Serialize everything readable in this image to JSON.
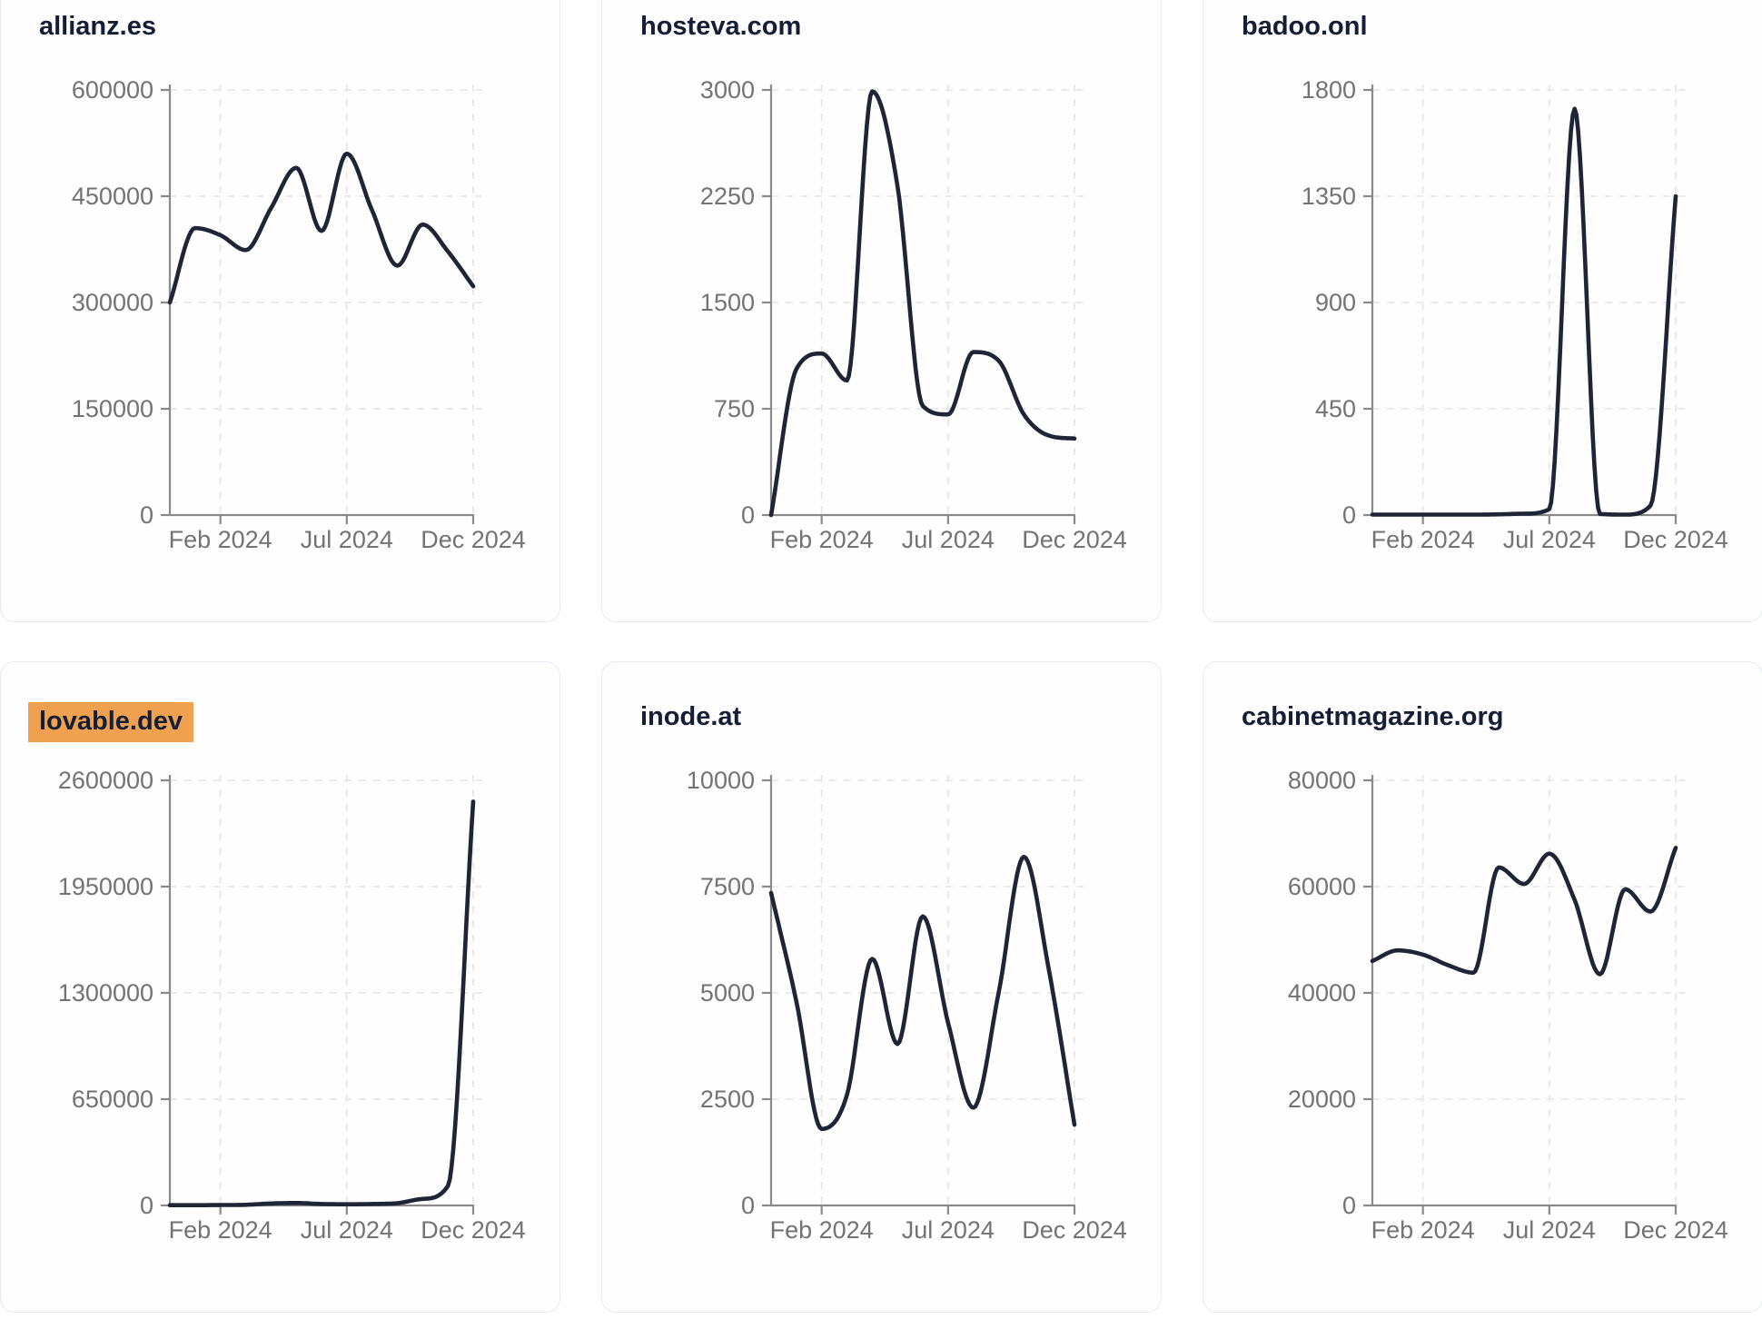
{
  "page": {
    "description": "Dashboard grid of six website traffic line charts, one card per domain",
    "rows": 2,
    "columns": 3
  },
  "style": {
    "line_color": "#1e2537",
    "title_color": "#141e36",
    "highlight_color": "#f0a150",
    "tick_label_color": "#737373",
    "axis_color": "#8a8a8a",
    "grid_color": "#e8e8e8",
    "card_border_color": "#e8eaf2",
    "card_bg": "#fefefe",
    "page_bg": "#ffffff"
  },
  "chart_data": [
    {
      "type": "line",
      "title": "allianz.es",
      "highlighted": false,
      "grid": "dashed",
      "legend": "none",
      "xlabel": "",
      "ylabel": "",
      "ylim": [
        0,
        600000
      ],
      "y_ticks": [
        0,
        150000,
        300000,
        450000,
        600000
      ],
      "x_tick_labels": [
        {
          "label": "Feb 2024",
          "month_index": 2
        },
        {
          "label": "Jul 2024",
          "month_index": 7
        },
        {
          "label": "Dec 2024",
          "month_index": 12
        }
      ],
      "months": [
        "Dec 2023",
        "Jan 2024",
        "Feb 2024",
        "Mar 2024",
        "Apr 2024",
        "May 2024",
        "Jun 2024",
        "Jul 2024",
        "Aug 2024",
        "Sep 2024",
        "Oct 2024",
        "Nov 2024",
        "Dec 2024"
      ],
      "values": [
        300000,
        405000,
        395000,
        374000,
        433000,
        490000,
        401000,
        510000,
        430000,
        352000,
        410000,
        372000,
        323000
      ]
    },
    {
      "type": "line",
      "title": "hosteva.com",
      "highlighted": false,
      "grid": "dashed",
      "legend": "none",
      "xlabel": "",
      "ylabel": "",
      "ylim": [
        0,
        3000
      ],
      "y_ticks": [
        0,
        750,
        1500,
        2250,
        3000
      ],
      "x_tick_labels": [
        {
          "label": "Feb 2024",
          "month_index": 2
        },
        {
          "label": "Jul 2024",
          "month_index": 7
        },
        {
          "label": "Dec 2024",
          "month_index": 12
        }
      ],
      "months": [
        "Dec 2023",
        "Jan 2024",
        "Feb 2024",
        "Mar 2024",
        "Apr 2024",
        "May 2024",
        "Jun 2024",
        "Jul 2024",
        "Aug 2024",
        "Sep 2024",
        "Oct 2024",
        "Nov 2024",
        "Dec 2024"
      ],
      "values": [
        0,
        1030,
        1140,
        950,
        2990,
        2320,
        770,
        710,
        1150,
        1090,
        710,
        560,
        540
      ]
    },
    {
      "type": "line",
      "title": "badoo.onl",
      "highlighted": false,
      "grid": "dashed",
      "legend": "none",
      "xlabel": "",
      "ylabel": "",
      "ylim": [
        0,
        1800
      ],
      "y_ticks": [
        0,
        450,
        900,
        1350,
        1800
      ],
      "x_tick_labels": [
        {
          "label": "Feb 2024",
          "month_index": 2
        },
        {
          "label": "Jul 2024",
          "month_index": 7
        },
        {
          "label": "Dec 2024",
          "month_index": 12
        }
      ],
      "months": [
        "Dec 2023",
        "Jan 2024",
        "Feb 2024",
        "Mar 2024",
        "Apr 2024",
        "May 2024",
        "Jun 2024",
        "Jul 2024",
        "Aug 2024",
        "Sep 2024",
        "Oct 2024",
        "Nov 2024",
        "Dec 2024"
      ],
      "values": [
        2,
        2,
        2,
        2,
        2,
        3,
        6,
        25,
        1720,
        5,
        2,
        40,
        1350
      ]
    },
    {
      "type": "line",
      "title": "lovable.dev",
      "highlighted": true,
      "grid": "dashed",
      "legend": "none",
      "xlabel": "",
      "ylabel": "",
      "ylim": [
        0,
        2600000
      ],
      "y_ticks": [
        0,
        650000,
        1300000,
        1950000,
        2600000
      ],
      "x_tick_labels": [
        {
          "label": "Feb 2024",
          "month_index": 2
        },
        {
          "label": "Jul 2024",
          "month_index": 7
        },
        {
          "label": "Dec 2024",
          "month_index": 12
        }
      ],
      "months": [
        "Dec 2023",
        "Jan 2024",
        "Feb 2024",
        "Mar 2024",
        "Apr 2024",
        "May 2024",
        "Jun 2024",
        "Jul 2024",
        "Aug 2024",
        "Sep 2024",
        "Oct 2024",
        "Nov 2024",
        "Dec 2024"
      ],
      "values": [
        1500,
        1500,
        2500,
        4000,
        12000,
        15000,
        9000,
        7000,
        9000,
        14000,
        40000,
        120000,
        2470000
      ]
    },
    {
      "type": "line",
      "title": "inode.at",
      "highlighted": false,
      "grid": "dashed",
      "legend": "none",
      "xlabel": "",
      "ylabel": "",
      "ylim": [
        0,
        10000
      ],
      "y_ticks": [
        0,
        2500,
        5000,
        7500,
        10000
      ],
      "x_tick_labels": [
        {
          "label": "Feb 2024",
          "month_index": 2
        },
        {
          "label": "Jul 2024",
          "month_index": 7
        },
        {
          "label": "Dec 2024",
          "month_index": 12
        }
      ],
      "months": [
        "Dec 2023",
        "Jan 2024",
        "Feb 2024",
        "Mar 2024",
        "Apr 2024",
        "May 2024",
        "Jun 2024",
        "Jul 2024",
        "Aug 2024",
        "Sep 2024",
        "Oct 2024",
        "Nov 2024",
        "Dec 2024"
      ],
      "values": [
        7350,
        4800,
        1800,
        2600,
        5800,
        3800,
        6800,
        4300,
        2300,
        5000,
        8200,
        5500,
        1900
      ]
    },
    {
      "type": "line",
      "title": "cabinetmagazine.org",
      "highlighted": false,
      "grid": "dashed",
      "legend": "none",
      "xlabel": "",
      "ylabel": "",
      "ylim": [
        0,
        80000
      ],
      "y_ticks": [
        0,
        20000,
        40000,
        60000,
        80000
      ],
      "x_tick_labels": [
        {
          "label": "Feb 2024",
          "month_index": 2
        },
        {
          "label": "Jul 2024",
          "month_index": 7
        },
        {
          "label": "Dec 2024",
          "month_index": 12
        }
      ],
      "months": [
        "Dec 2023",
        "Jan 2024",
        "Feb 2024",
        "Mar 2024",
        "Apr 2024",
        "May 2024",
        "Jun 2024",
        "Jul 2024",
        "Aug 2024",
        "Sep 2024",
        "Oct 2024",
        "Nov 2024",
        "Dec 2024"
      ],
      "values": [
        46000,
        48000,
        47200,
        45200,
        43800,
        63600,
        60500,
        66200,
        57500,
        43500,
        59500,
        55300,
        67300
      ]
    }
  ]
}
